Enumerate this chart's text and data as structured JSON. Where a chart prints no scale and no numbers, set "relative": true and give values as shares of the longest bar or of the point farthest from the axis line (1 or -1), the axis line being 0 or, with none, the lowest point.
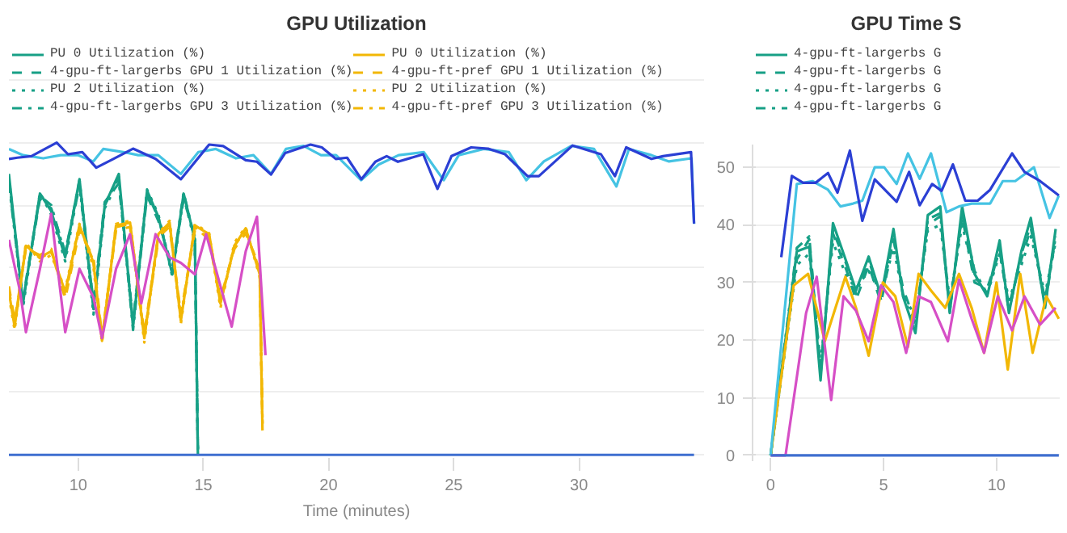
{
  "chart_data": [
    {
      "type": "line",
      "title": "GPU Utilization",
      "xlabel": "Time (minutes)",
      "relative": true,
      "xlim": [
        7.23,
        35
      ],
      "xticks": [
        10,
        15,
        20,
        25,
        30
      ],
      "grid": "y",
      "legend": "top",
      "series": [
        {
          "name": "PU 0 Utilization (%)",
          "color": "#17a086",
          "line_style": "solid",
          "x": [
            7.23,
            7.79,
            8.47,
            8.92,
            9.48,
            10.05,
            10.61,
            11.06,
            11.62,
            12.19,
            12.75,
            13.2,
            13.76,
            14.21,
            14.66,
            14.78
          ],
          "values": [
            0.9,
            0.485,
            0.837,
            0.781,
            0.633,
            0.883,
            0.467,
            0.8,
            0.9,
            0.411,
            0.846,
            0.763,
            0.578,
            0.837,
            0.689,
            0
          ]
        },
        {
          "name": "4-gpu-ft-largerbs GPU 1 Utilization (%)",
          "color": "#17a086",
          "line_style": "dashed",
          "x": [
            7.23,
            7.79,
            8.47,
            8.92,
            9.48,
            10.05,
            10.61,
            11.06,
            11.62,
            12.19,
            12.75,
            13.2,
            13.76,
            14.21,
            14.66,
            14.78
          ],
          "values": [
            0.88,
            0.5,
            0.82,
            0.79,
            0.65,
            0.86,
            0.49,
            0.81,
            0.87,
            0.43,
            0.83,
            0.75,
            0.6,
            0.82,
            0.7,
            0
          ]
        },
        {
          "name": "PU 2 Utilization (%)",
          "color": "#17a086",
          "line_style": "dotted",
          "x": [
            7.23,
            7.79,
            8.47,
            8.92,
            9.48,
            10.05,
            10.61,
            11.06,
            11.62,
            12.19,
            12.75,
            13.2,
            13.76,
            14.21,
            14.66,
            14.78
          ],
          "values": [
            0.89,
            0.47,
            0.84,
            0.77,
            0.62,
            0.87,
            0.45,
            0.79,
            0.88,
            0.42,
            0.85,
            0.77,
            0.57,
            0.83,
            0.68,
            0
          ]
        },
        {
          "name": "4-gpu-ft-largerbs GPU 3 Utilization (%)",
          "color": "#17a086",
          "line_style": "dashdot",
          "x": [
            7.23,
            7.79,
            8.47,
            8.92,
            9.48,
            10.05,
            10.61,
            11.06,
            11.62,
            12.19,
            12.75,
            13.2,
            13.76,
            14.21,
            14.66,
            14.78
          ],
          "values": [
            0.87,
            0.49,
            0.83,
            0.8,
            0.64,
            0.88,
            0.48,
            0.8,
            0.89,
            0.4,
            0.84,
            0.76,
            0.59,
            0.84,
            0.69,
            0
          ]
        },
        {
          "name": "PU 0 Utilization (%)",
          "color": "#f2b705",
          "line_style": "solid",
          "x": [
            7.23,
            7.46,
            7.91,
            8.47,
            8.92,
            9.48,
            10.05,
            10.61,
            10.95,
            11.51,
            12.07,
            12.64,
            13.2,
            13.65,
            14.1,
            14.66,
            15.23,
            15.68,
            16.24,
            16.69,
            17.25,
            17.36
          ],
          "values": [
            0.522,
            0.411,
            0.67,
            0.633,
            0.652,
            0.522,
            0.735,
            0.615,
            0.365,
            0.735,
            0.744,
            0.374,
            0.707,
            0.744,
            0.43,
            0.735,
            0.707,
            0.485,
            0.67,
            0.726,
            0.578,
            0.078
          ]
        },
        {
          "name": "4-gpu-ft-pref GPU 1 Utilization (%)",
          "color": "#f2b705",
          "line_style": "dashed",
          "x": [
            7.23,
            7.46,
            7.91,
            8.47,
            8.92,
            9.48,
            10.05,
            10.61,
            10.95,
            11.51,
            12.07,
            12.64,
            13.2,
            13.65,
            14.1,
            14.66,
            15.23,
            15.68,
            16.24,
            16.69,
            17.25,
            17.36
          ],
          "values": [
            0.54,
            0.43,
            0.66,
            0.64,
            0.66,
            0.5,
            0.72,
            0.63,
            0.38,
            0.72,
            0.73,
            0.39,
            0.7,
            0.73,
            0.45,
            0.72,
            0.7,
            0.5,
            0.66,
            0.71,
            0.6,
            0.1
          ]
        },
        {
          "name": "PU 2 Utilization (%)",
          "color": "#f2b705",
          "line_style": "dotted",
          "x": [
            7.23,
            7.46,
            7.91,
            8.47,
            8.92,
            9.48,
            10.05,
            10.61,
            10.95,
            11.51,
            12.07,
            12.64,
            13.2,
            13.65,
            14.1,
            14.66,
            15.23,
            15.68,
            16.24,
            16.69,
            17.25,
            17.36
          ],
          "values": [
            0.51,
            0.4,
            0.68,
            0.62,
            0.64,
            0.53,
            0.74,
            0.6,
            0.36,
            0.74,
            0.75,
            0.36,
            0.71,
            0.75,
            0.42,
            0.74,
            0.71,
            0.47,
            0.68,
            0.73,
            0.57,
            0.09
          ]
        },
        {
          "name": "4-gpu-ft-pref GPU 3 Utilization (%)",
          "color": "#f2b705",
          "line_style": "dashdot",
          "x": [
            7.23,
            7.46,
            7.91,
            8.47,
            8.92,
            9.48,
            10.05,
            10.61,
            10.95,
            11.51,
            12.07,
            12.64,
            13.2,
            13.65,
            14.1,
            14.66,
            15.23,
            15.68,
            16.24,
            16.69,
            17.25,
            17.36
          ],
          "values": [
            0.53,
            0.42,
            0.67,
            0.63,
            0.65,
            0.51,
            0.73,
            0.62,
            0.37,
            0.73,
            0.74,
            0.38,
            0.69,
            0.74,
            0.44,
            0.73,
            0.69,
            0.49,
            0.67,
            0.72,
            0.59,
            0.12
          ]
        },
        {
          "color": "#d64fc6",
          "line_style": "solid",
          "x": [
            7.23,
            7.68,
            7.91,
            8.47,
            8.92,
            9.48,
            10.05,
            10.61,
            10.95,
            11.51,
            12.07,
            12.52,
            13.09,
            13.65,
            14.1,
            14.66,
            15.11,
            15.68,
            16.13,
            16.69,
            17.14,
            17.48
          ],
          "values": [
            0.689,
            0.522,
            0.393,
            0.596,
            0.772,
            0.393,
            0.596,
            0.504,
            0.374,
            0.596,
            0.707,
            0.485,
            0.707,
            0.633,
            0.615,
            0.578,
            0.707,
            0.541,
            0.411,
            0.652,
            0.763,
            0.319
          ]
        },
        {
          "color": "#45c3e3",
          "line_style": "solid",
          "x": [
            7.23,
            7.8,
            8.6,
            9.3,
            10.0,
            10.6,
            11.0,
            11.8,
            12.4,
            13.2,
            14.1,
            14.8,
            15.5,
            16.3,
            17.0,
            17.7,
            18.3,
            19.0,
            19.7,
            20.3,
            21.3,
            22.0,
            22.8,
            23.8,
            24.6,
            25.2,
            26.2,
            27.2,
            27.9,
            28.6,
            29.7,
            30.6,
            31.5,
            32.0,
            32.9,
            33.6,
            34.5,
            34.6
          ],
          "values": [
            0.98,
            0.96,
            0.95,
            0.96,
            0.96,
            0.94,
            0.98,
            0.97,
            0.96,
            0.96,
            0.9,
            0.97,
            0.98,
            0.95,
            0.96,
            0.9,
            0.98,
            0.99,
            0.96,
            0.96,
            0.88,
            0.93,
            0.96,
            0.97,
            0.88,
            0.96,
            0.98,
            0.97,
            0.88,
            0.94,
            0.99,
            0.98,
            0.86,
            0.98,
            0.96,
            0.94,
            0.95,
            0.74
          ]
        },
        {
          "color": "#2b3fd4",
          "line_style": "solid",
          "x": [
            7.23,
            7.57,
            8.13,
            9.14,
            9.59,
            10.16,
            10.72,
            11.4,
            12.19,
            13.09,
            14.1,
            15.23,
            15.79,
            16.69,
            17.14,
            17.7,
            18.27,
            19.28,
            19.73,
            20.29,
            20.74,
            21.31,
            21.87,
            22.32,
            22.77,
            23.78,
            24.35,
            24.91,
            25.7,
            26.37,
            27.05,
            27.95,
            28.4,
            29.75,
            30.88,
            31.44,
            31.89,
            32.9,
            33.36,
            34.48,
            34.6
          ],
          "values": [
            0.948,
            0.952,
            0.957,
            1.0,
            0.963,
            0.97,
            0.92,
            0.948,
            0.981,
            0.948,
            0.883,
            0.994,
            0.989,
            0.944,
            0.939,
            0.898,
            0.967,
            0.994,
            0.985,
            0.948,
            0.952,
            0.883,
            0.939,
            0.957,
            0.939,
            0.963,
            0.852,
            0.957,
            0.985,
            0.981,
            0.963,
            0.893,
            0.893,
            0.991,
            0.963,
            0.893,
            0.985,
            0.948,
            0.957,
            0.97,
            0.741
          ]
        },
        {
          "color": "#3f6fd0",
          "line_style": "solid",
          "x": [
            7.23,
            34.6
          ],
          "values": [
            0,
            0
          ]
        }
      ]
    },
    {
      "type": "line",
      "title": "GPU Time S",
      "xlim": [
        -0.8,
        12.8
      ],
      "xticks": [
        0,
        5,
        10
      ],
      "ylim": [
        -1,
        54
      ],
      "yticks": [
        0,
        10,
        20,
        30,
        40,
        50
      ],
      "grid": "y",
      "legend": "top",
      "series": [
        {
          "name": "4-gpu-ft-largerbs G",
          "color": "#17a086",
          "line_style": "solid",
          "x": [
            0,
            1.16,
            1.71,
            2.21,
            2.76,
            3.37,
            3.78,
            4.34,
            4.89,
            5.44,
            5.86,
            6.41,
            6.96,
            7.51,
            7.93,
            8.48,
            9.03,
            9.59,
            10.14,
            10.55,
            11.1,
            11.52,
            12.15,
            12.62
          ],
          "values": [
            0,
            35.4,
            36.2,
            13,
            40.3,
            33.4,
            28.6,
            34.5,
            27.6,
            39.3,
            27.6,
            21.2,
            41.7,
            43.2,
            24.7,
            43.2,
            31.5,
            27.6,
            37.3,
            24.7,
            35.4,
            41.2,
            25.6,
            39.3
          ]
        },
        {
          "name": "4-gpu-ft-largerbs G",
          "color": "#17a086",
          "line_style": "dashed",
          "x": [
            0,
            1.16,
            1.71,
            2.21,
            2.76,
            3.37,
            3.78,
            4.34,
            4.89,
            5.44,
            5.86,
            6.41,
            6.96,
            7.51,
            7.93,
            8.48,
            9.03,
            9.59,
            10.14,
            10.55,
            11.1,
            11.52,
            12.15,
            12.62
          ],
          "values": [
            0,
            34,
            37.5,
            15,
            38.5,
            32,
            27,
            33,
            26.5,
            37.5,
            29,
            23,
            40,
            41.5,
            26,
            41.5,
            30,
            29,
            35.5,
            26,
            34,
            39.5,
            27,
            38
          ]
        },
        {
          "name": "4-gpu-ft-largerbs G",
          "color": "#17a086",
          "line_style": "dotted",
          "x": [
            0,
            1.16,
            1.71,
            2.21,
            2.76,
            3.37,
            3.78,
            4.34,
            4.89,
            5.44,
            5.86,
            6.41,
            6.96,
            7.51,
            7.93,
            8.48,
            9.03,
            9.59,
            10.14,
            10.55,
            11.1,
            11.52,
            12.15,
            12.62
          ],
          "values": [
            0,
            33,
            35,
            16,
            37,
            31,
            29,
            32,
            28,
            36,
            28,
            24,
            39,
            40,
            27,
            40,
            31,
            28,
            35,
            27,
            33,
            38,
            28,
            37
          ]
        },
        {
          "name": "4-gpu-ft-largerbs G",
          "color": "#17a086",
          "line_style": "dashdot",
          "x": [
            0,
            1.16,
            1.71,
            2.21,
            2.76,
            3.37,
            3.78,
            4.34,
            4.89,
            5.44,
            5.86,
            6.41,
            6.96,
            7.51,
            7.93,
            8.48,
            9.03,
            9.59,
            10.14,
            10.55,
            11.1,
            11.52,
            12.15,
            12.62
          ],
          "values": [
            0,
            36,
            38,
            14,
            39,
            33,
            28,
            34,
            27,
            38,
            28,
            22,
            41,
            42,
            25,
            42,
            32,
            28,
            36,
            25,
            35,
            40,
            26,
            38
          ]
        },
        {
          "color": "#f2b705",
          "line_style": "solid",
          "x": [
            0,
            1.02,
            1.66,
            2.4,
            3.31,
            3.78,
            4.34,
            4.97,
            5.52,
            6.08,
            6.55,
            7.1,
            7.73,
            8.34,
            8.9,
            9.45,
            10.0,
            10.5,
            11.05,
            11.6,
            12.21,
            12.76
          ],
          "values": [
            0,
            29.5,
            31.5,
            19.8,
            31,
            25.6,
            17.3,
            30,
            27.6,
            18.8,
            31.5,
            28.6,
            25.6,
            31.5,
            25.6,
            17.8,
            30,
            14.9,
            31.5,
            17.8,
            27.6,
            23.7
          ]
        },
        {
          "color": "#d64fc6",
          "line_style": "solid",
          "x": [
            0,
            0.66,
            1.57,
            2.04,
            2.68,
            3.23,
            3.78,
            4.34,
            4.89,
            5.44,
            6.0,
            6.55,
            7.1,
            7.85,
            8.34,
            8.9,
            9.45,
            10.06,
            10.69,
            11.24,
            11.93,
            12.62
          ],
          "values": [
            0,
            0,
            24.7,
            31,
            9.6,
            27.6,
            25.1,
            19.8,
            29.5,
            26.6,
            17.8,
            27.6,
            26.6,
            19.8,
            30.5,
            23.7,
            17.8,
            27.6,
            21.7,
            27.6,
            22.7,
            25.6
          ]
        },
        {
          "color": "#45c3e3",
          "line_style": "solid",
          "x": [
            0,
            1.16,
            1.85,
            2.54,
            3.09,
            3.65,
            4.06,
            4.61,
            5.03,
            5.58,
            6.08,
            6.6,
            7.1,
            7.79,
            8.34,
            8.9,
            9.72,
            10.28,
            10.83,
            11.66,
            12.35,
            12.76
          ],
          "values": [
            0,
            47.1,
            47.6,
            46.1,
            43.2,
            43.7,
            44.2,
            50,
            50,
            47.1,
            52.4,
            48,
            52.4,
            42.2,
            43.2,
            43.7,
            43.7,
            47.6,
            47.6,
            50,
            41.2,
            45.1
          ]
        },
        {
          "color": "#2b3fd4",
          "line_style": "solid",
          "x": [
            0.47,
            0.94,
            1.44,
            1.99,
            2.54,
            2.96,
            3.51,
            4.06,
            4.61,
            5.58,
            6.13,
            6.6,
            7.15,
            7.57,
            8.07,
            8.62,
            9.17,
            9.72,
            10.69,
            11.24,
            11.93,
            12.76
          ],
          "values": [
            34.4,
            48.5,
            47.3,
            47.3,
            49,
            45.6,
            52.9,
            40.7,
            47.9,
            44,
            49.2,
            43.4,
            47.1,
            45.9,
            50.5,
            44.2,
            44.2,
            46.1,
            52.4,
            49.2,
            47.6,
            45.1
          ]
        },
        {
          "color": "#3f6fd0",
          "line_style": "solid",
          "x": [
            0,
            12.76
          ],
          "values": [
            0,
            0
          ]
        }
      ]
    }
  ]
}
